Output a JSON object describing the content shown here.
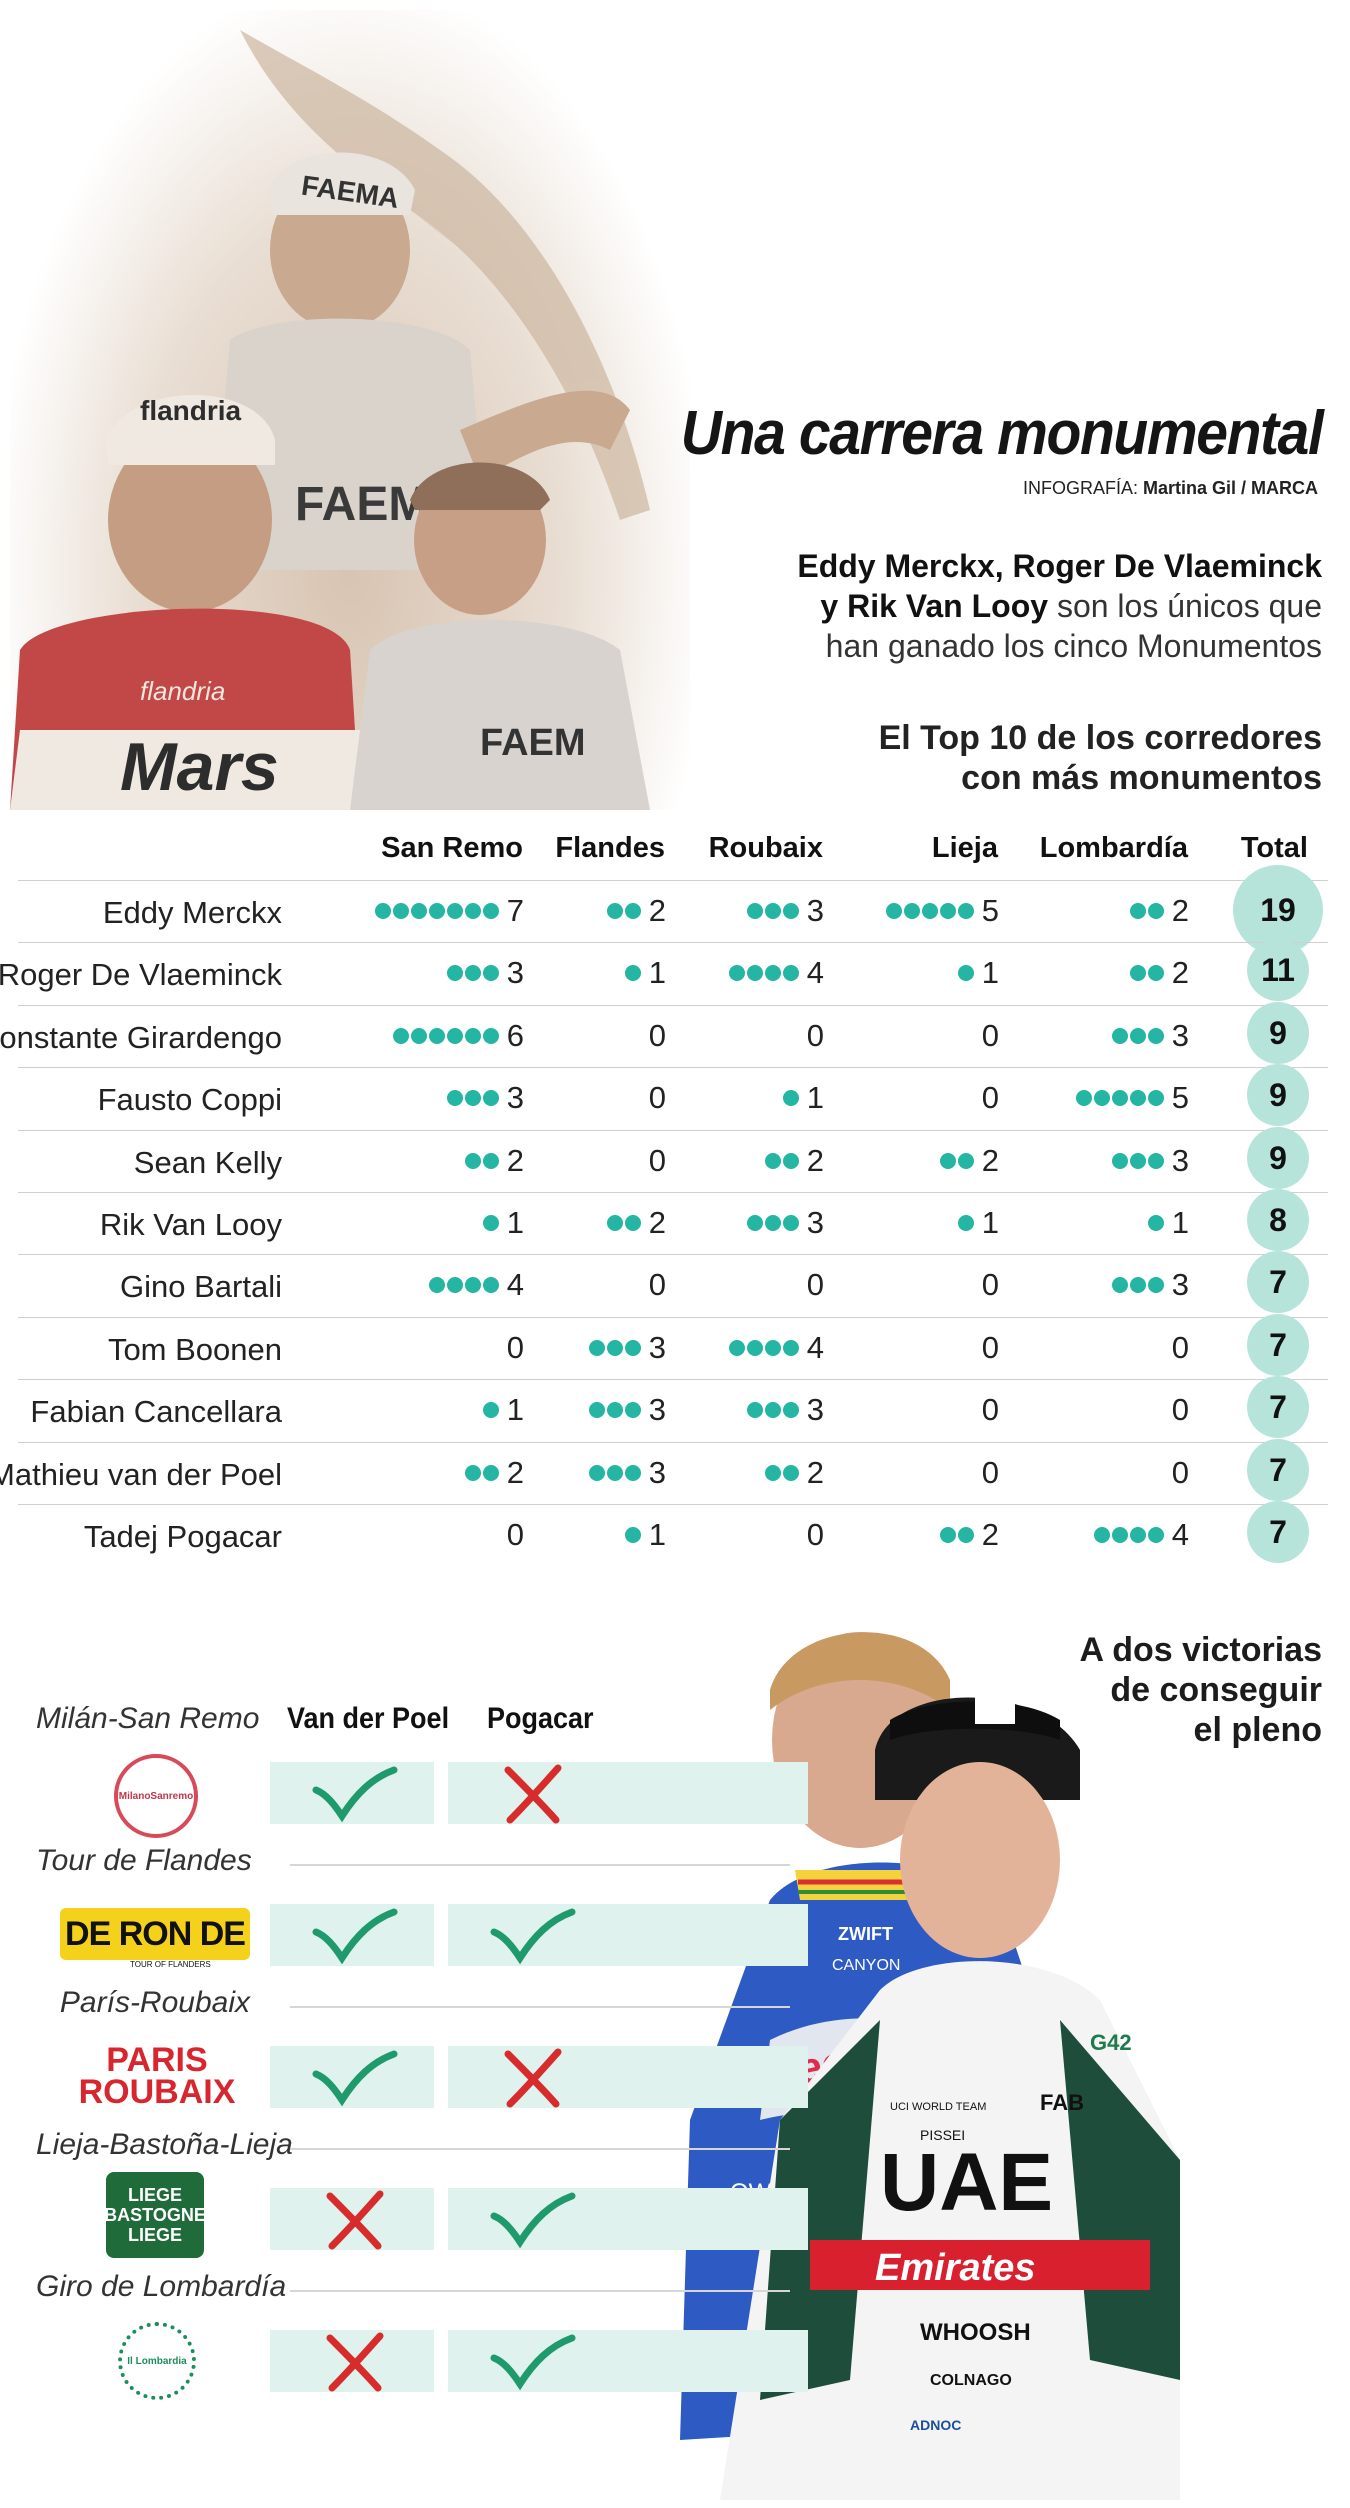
{
  "header": {
    "title": "Una carrera monumental",
    "credit_prefix": "INFOGRAFÍA:",
    "credit_name": "Martina Gil / MARCA",
    "intro_bold": "Eddy Merckx, Roger De Vlaeminck y Rik Van Looy",
    "intro_rest": "son los únicos que han ganado los cinco Monumentos",
    "subtitle_line1": "El Top 10 de los corredores",
    "subtitle_line2": "con más monumentos"
  },
  "hero_photo": {
    "jersey_texts": [
      "FAEMA",
      "flandria",
      "Mars",
      "flandria",
      "FAEM",
      "FAEM"
    ]
  },
  "table": {
    "columns": [
      "San Remo",
      "Flandes",
      "Roubaix",
      "Lieja",
      "Lombardía",
      "Total"
    ],
    "rows": [
      {
        "name": "Eddy Merckx",
        "values": [
          7,
          2,
          3,
          5,
          2
        ],
        "total": 19
      },
      {
        "name": "Roger De Vlaeminck",
        "values": [
          3,
          1,
          4,
          1,
          2
        ],
        "total": 11
      },
      {
        "name": "Constante Girardengo",
        "values": [
          6,
          0,
          0,
          0,
          3
        ],
        "total": 9
      },
      {
        "name": "Fausto Coppi",
        "values": [
          3,
          0,
          1,
          0,
          5
        ],
        "total": 9
      },
      {
        "name": "Sean Kelly",
        "values": [
          2,
          0,
          2,
          2,
          3
        ],
        "total": 9
      },
      {
        "name": "Rik Van Looy",
        "values": [
          1,
          2,
          3,
          1,
          1
        ],
        "total": 8
      },
      {
        "name": "Gino Bartali",
        "values": [
          4,
          0,
          0,
          0,
          3
        ],
        "total": 7
      },
      {
        "name": "Tom Boonen",
        "values": [
          0,
          3,
          4,
          0,
          0
        ],
        "total": 7
      },
      {
        "name": "Fabian Cancellara",
        "values": [
          1,
          3,
          3,
          0,
          0
        ],
        "total": 7
      },
      {
        "name": "Mathieu van der Poel",
        "values": [
          2,
          3,
          2,
          0,
          0
        ],
        "total": 7
      },
      {
        "name": "Tadej Pogacar",
        "values": [
          0,
          1,
          0,
          2,
          4
        ],
        "total": 7
      }
    ],
    "dot_color": "#25b5a3",
    "total_color": "#b6e4db"
  },
  "comparison": {
    "title_line1": "A dos victorias",
    "title_line2": "de conseguir",
    "title_line3": "el pleno",
    "riders": [
      "Van der Poel",
      "Pogacar"
    ],
    "races": [
      {
        "name": "Milán-San Remo",
        "logo": "milan-sanremo-logo",
        "logo_text": "MilanoSanremo",
        "results": [
          "check",
          "cross"
        ]
      },
      {
        "name": "Tour de Flandes",
        "logo": "ronde-logo",
        "logo_text": "DE RON DE",
        "logo_sub": "TOUR OF FLANDERS",
        "results": [
          "check",
          "check"
        ]
      },
      {
        "name": "París-Roubaix",
        "logo": "paris-roubaix-logo",
        "logo_text": "PARIS ROUBAIX",
        "results": [
          "check",
          "cross"
        ]
      },
      {
        "name": "Lieja-Bastoña-Lieja",
        "logo": "lbl-logo",
        "logo_text": "LIEGE BASTOGNE LIEGE",
        "results": [
          "cross",
          "check"
        ]
      },
      {
        "name": "Giro de Lombardía",
        "logo": "lombardia-logo",
        "logo_text": "Il Lombardia",
        "results": [
          "cross",
          "check"
        ]
      }
    ],
    "check_color": "#1f9a6c",
    "cross_color": "#d82b2b",
    "band_color": "#dff2ee"
  },
  "rider_photo": {
    "vdp_jersey": [
      "ZWIFT",
      "CANYON",
      "alpecin",
      "OWS"
    ],
    "pogacar_jersey": [
      "UAE",
      "Emirates",
      "FAB",
      "G42",
      "WHOOSH",
      "COLNAGO",
      "ADNOC",
      "PISSEI",
      "UCI WORLD TEAM"
    ]
  }
}
